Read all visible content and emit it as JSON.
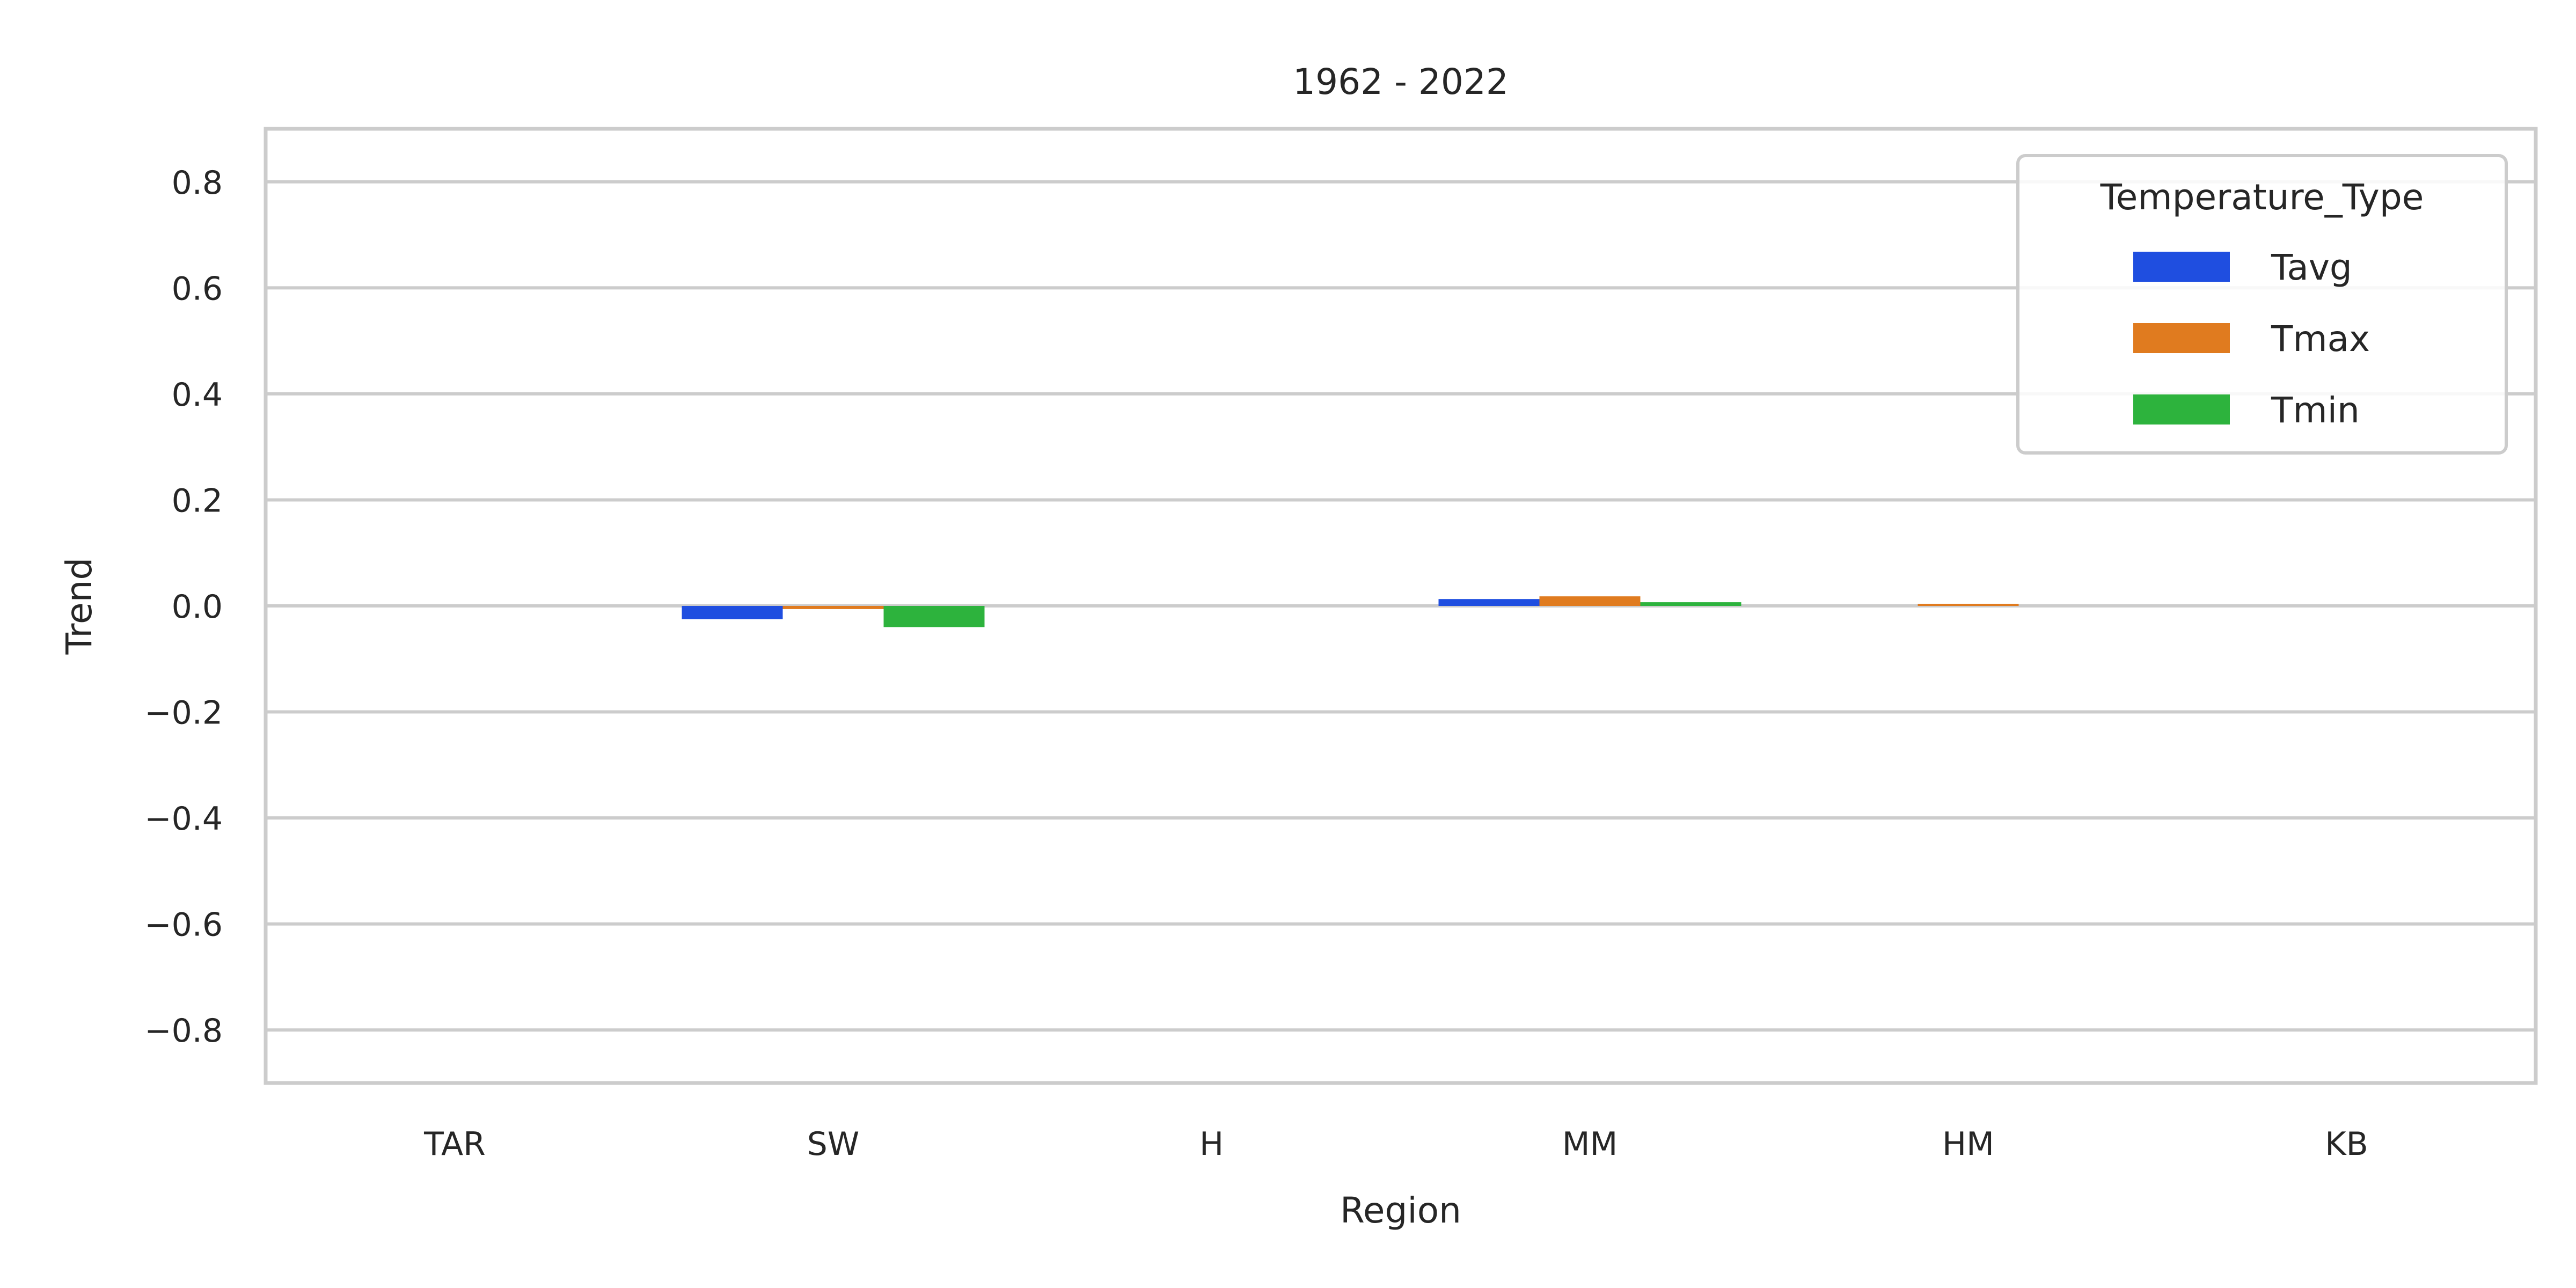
{
  "chart_data": {
    "type": "bar",
    "title": "1962 - 2022",
    "xlabel": "Region",
    "ylabel": "Trend",
    "categories": [
      "TAR",
      "SW",
      "H",
      "MM",
      "HM",
      "KB"
    ],
    "ylim": [
      -0.9,
      0.9
    ],
    "yticks": [
      -0.8,
      -0.6,
      -0.4,
      -0.2,
      0.0,
      0.2,
      0.4,
      0.6,
      0.8
    ],
    "ytick_labels": [
      "−0.8",
      "−0.6",
      "−0.4",
      "−0.2",
      "0.0",
      "0.2",
      "0.4",
      "0.6",
      "0.8"
    ],
    "grid": true,
    "legend": {
      "title": "Temperature_Type",
      "placement": "top-right"
    },
    "series": [
      {
        "name": "Tavg",
        "color": "#1f4ee0",
        "values": [
          0.0,
          -0.025,
          0.0,
          0.013,
          0.0,
          0.0
        ]
      },
      {
        "name": "Tmax",
        "color": "#e07b1f",
        "values": [
          0.0,
          -0.006,
          0.0,
          0.018,
          0.003,
          0.0
        ]
      },
      {
        "name": "Tmin",
        "color": "#2db33d",
        "values": [
          0.0,
          -0.04,
          0.0,
          0.007,
          0.0,
          0.0
        ]
      }
    ]
  }
}
